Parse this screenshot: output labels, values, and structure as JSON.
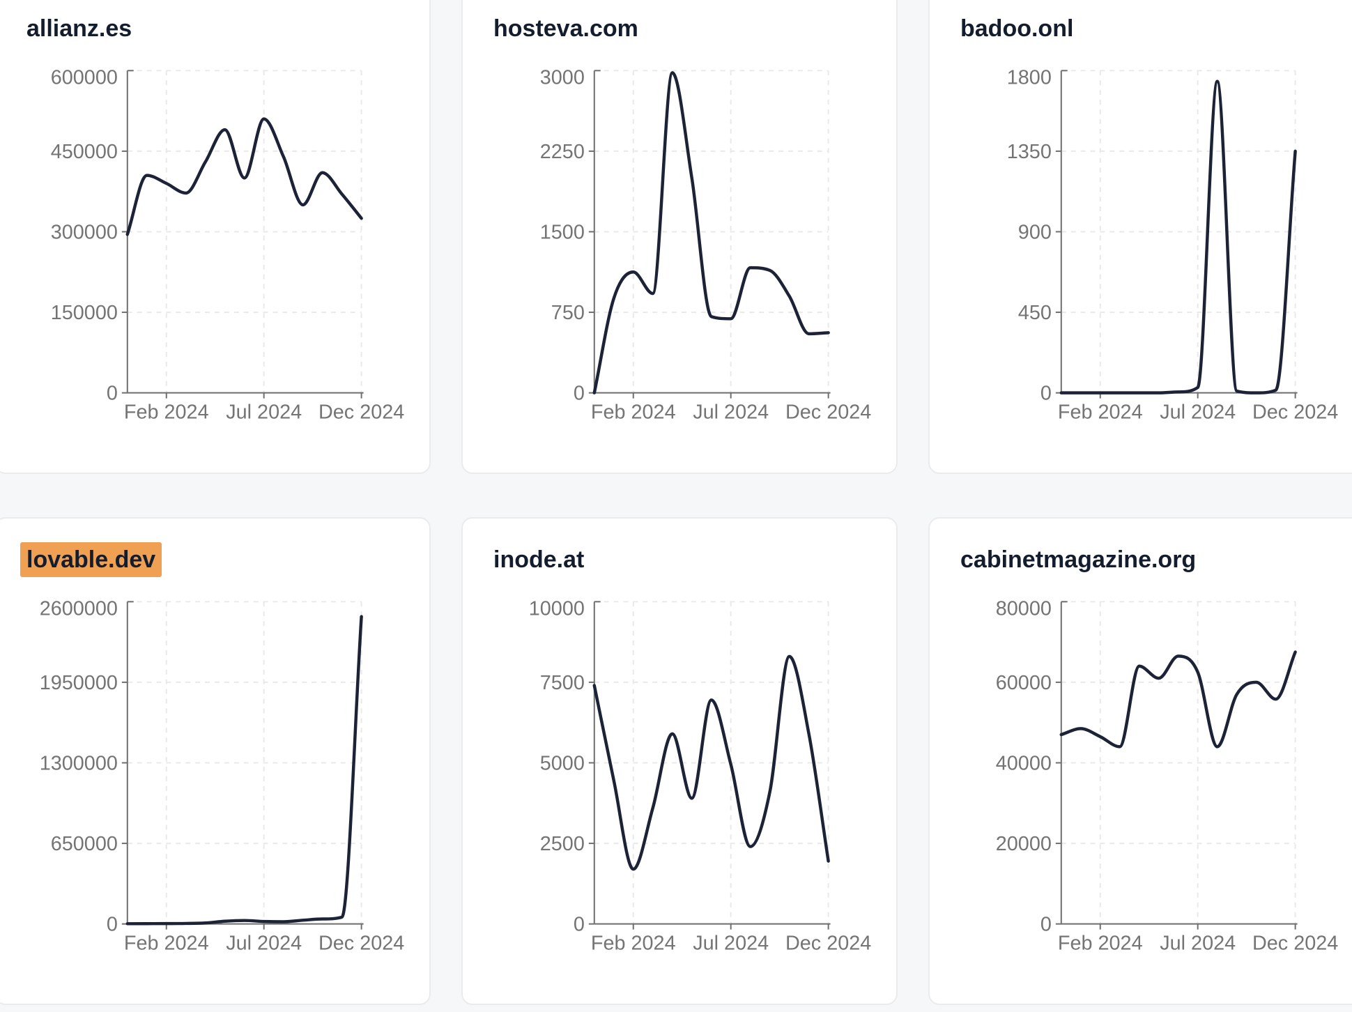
{
  "page": {
    "background_color": "#f6f7f8"
  },
  "style": {
    "line_color": "#1d2337",
    "axis_color": "#6e6e6e",
    "tick_label_color": "#747474",
    "grid_color": "#e9e9e9",
    "title_color": "#141d2e",
    "highlight_color": "#f0a052",
    "card_background": "#ffffff",
    "card_border_color": "#ebebed"
  },
  "chart_data": [
    {
      "type": "line",
      "title": "allianz.es",
      "highlighted": false,
      "x": [
        "2023-12",
        "2024-01",
        "2024-02",
        "2024-03",
        "2024-04",
        "2024-05",
        "2024-06",
        "2024-07",
        "2024-08",
        "2024-09",
        "2024-10",
        "2024-11",
        "2024-12"
      ],
      "x_tick_labels": [
        "Feb 2024",
        "Jul 2024",
        "Dec 2024"
      ],
      "x_tick_indices": [
        2,
        7,
        12
      ],
      "y_ticks": [
        0,
        150000,
        300000,
        450000,
        600000
      ],
      "ylim": [
        0,
        600000
      ],
      "values": [
        295000,
        405000,
        390000,
        372000,
        430000,
        490000,
        400000,
        510000,
        440000,
        350000,
        410000,
        370000,
        325000
      ],
      "grid": "dashed",
      "legend": false
    },
    {
      "type": "line",
      "title": "hosteva.com",
      "highlighted": false,
      "x": [
        "2023-12",
        "2024-01",
        "2024-02",
        "2024-03",
        "2024-04",
        "2024-05",
        "2024-06",
        "2024-07",
        "2024-08",
        "2024-09",
        "2024-10",
        "2024-11",
        "2024-12"
      ],
      "x_tick_labels": [
        "Feb 2024",
        "Jul 2024",
        "Dec 2024"
      ],
      "x_tick_indices": [
        2,
        7,
        12
      ],
      "y_ticks": [
        0,
        750,
        1500,
        2250,
        3000
      ],
      "ylim": [
        0,
        3000
      ],
      "values": [
        0,
        880,
        1125,
        925,
        2980,
        2000,
        710,
        690,
        1165,
        1140,
        900,
        550,
        560
      ],
      "grid": "dashed",
      "legend": false
    },
    {
      "type": "line",
      "title": "badoo.onl",
      "highlighted": false,
      "x": [
        "2023-12",
        "2024-01",
        "2024-02",
        "2024-03",
        "2024-04",
        "2024-05",
        "2024-06",
        "2024-07",
        "2024-08",
        "2024-09",
        "2024-10",
        "2024-11",
        "2024-12"
      ],
      "x_tick_labels": [
        "Feb 2024",
        "Jul 2024",
        "Dec 2024"
      ],
      "x_tick_indices": [
        2,
        7,
        12
      ],
      "y_ticks": [
        0,
        450,
        900,
        1350,
        1800
      ],
      "ylim": [
        0,
        1800
      ],
      "values": [
        0,
        0,
        0,
        0,
        0,
        0,
        5,
        30,
        1740,
        10,
        0,
        15,
        1350
      ],
      "grid": "dashed",
      "legend": false
    },
    {
      "type": "line",
      "title": "lovable.dev",
      "highlighted": true,
      "x": [
        "2023-12",
        "2024-01",
        "2024-02",
        "2024-03",
        "2024-04",
        "2024-05",
        "2024-06",
        "2024-07",
        "2024-08",
        "2024-09",
        "2024-10",
        "2024-11",
        "2024-12"
      ],
      "x_tick_labels": [
        "Feb 2024",
        "Jul 2024",
        "Dec 2024"
      ],
      "x_tick_indices": [
        2,
        7,
        12
      ],
      "y_ticks": [
        0,
        650000,
        1300000,
        1950000,
        2600000
      ],
      "ylim": [
        0,
        2600000
      ],
      "values": [
        2000,
        2500,
        3000,
        4000,
        8000,
        22000,
        28000,
        20000,
        18000,
        30000,
        40000,
        55000,
        2480000
      ],
      "grid": "dashed",
      "legend": false
    },
    {
      "type": "line",
      "title": "inode.at",
      "highlighted": false,
      "x": [
        "2023-12",
        "2024-01",
        "2024-02",
        "2024-03",
        "2024-04",
        "2024-05",
        "2024-06",
        "2024-07",
        "2024-08",
        "2024-09",
        "2024-10",
        "2024-11",
        "2024-12"
      ],
      "x_tick_labels": [
        "Feb 2024",
        "Jul 2024",
        "Dec 2024"
      ],
      "x_tick_indices": [
        2,
        7,
        12
      ],
      "y_ticks": [
        0,
        2500,
        5000,
        7500,
        10000
      ],
      "ylim": [
        0,
        10000
      ],
      "values": [
        7400,
        4450,
        1700,
        3600,
        5900,
        3900,
        6950,
        4950,
        2400,
        4100,
        8300,
        5900,
        1950
      ],
      "grid": "dashed",
      "legend": false
    },
    {
      "type": "line",
      "title": "cabinetmagazine.org",
      "highlighted": false,
      "x": [
        "2023-12",
        "2024-01",
        "2024-02",
        "2024-03",
        "2024-04",
        "2024-05",
        "2024-06",
        "2024-07",
        "2024-08",
        "2024-09",
        "2024-10",
        "2024-11",
        "2024-12"
      ],
      "x_tick_labels": [
        "Feb 2024",
        "Jul 2024",
        "Dec 2024"
      ],
      "x_tick_indices": [
        2,
        7,
        12
      ],
      "y_ticks": [
        0,
        20000,
        40000,
        60000,
        80000
      ],
      "ylim": [
        0,
        80000
      ],
      "values": [
        47000,
        48500,
        46500,
        44000,
        64000,
        61000,
        66500,
        62500,
        44000,
        57000,
        60000,
        55800,
        67500
      ],
      "grid": "dashed",
      "legend": false
    }
  ]
}
